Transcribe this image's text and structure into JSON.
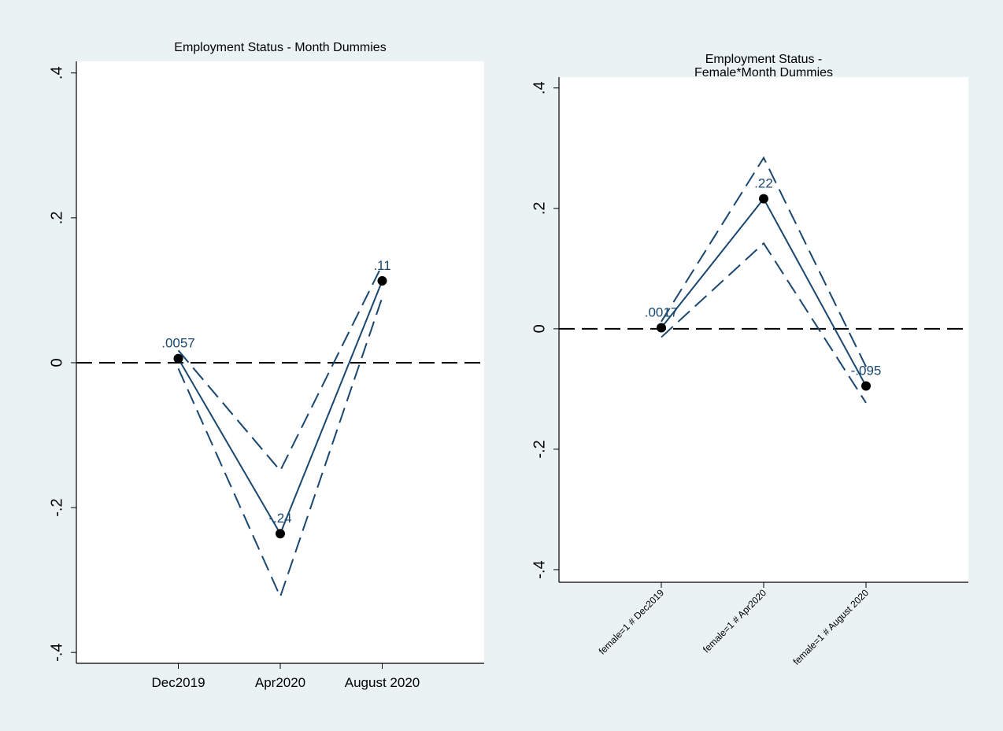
{
  "chart_data": [
    {
      "type": "line",
      "title": [
        "Employment Status - Month Dummies"
      ],
      "categories": [
        "Dec2019",
        "Apr2020",
        "August 2020"
      ],
      "values": [
        0.0057,
        -0.236,
        0.113
      ],
      "value_labels": [
        ".0057",
        "-.24",
        ".11"
      ],
      "ci_upper": [
        0.017,
        -0.149,
        0.135
      ],
      "ci_lower": [
        -0.008,
        -0.323,
        0.09
      ],
      "color": "#1a476f",
      "yline": 0,
      "ylim": [
        -0.415,
        0.416
      ],
      "yticks": [
        {
          "value": -0.4,
          "label": "-.4"
        },
        {
          "value": -0.2,
          "label": "-.2"
        },
        0,
        {
          "value": 0.2,
          "label": ".2"
        },
        {
          "value": 0.4,
          "label": ".4"
        }
      ]
    },
    {
      "type": "line",
      "title": [
        "Employment Status -",
        "Female*Month Dummies"
      ],
      "categories": [
        "female=1 # Dec2019",
        "female=1 # Apr2020",
        "female=1 # August 2020"
      ],
      "values": [
        0.0017,
        0.216,
        -0.095
      ],
      "value_labels": [
        ".0017",
        ".22",
        "-.095"
      ],
      "ci_upper": [
        0.012,
        0.284,
        -0.063
      ],
      "ci_lower": [
        -0.014,
        0.142,
        -0.123
      ],
      "color": "#1a476f",
      "yline": 0,
      "ylim": [
        -0.421,
        0.418
      ],
      "yticks": [
        {
          "value": -0.4,
          "label": "-.4"
        },
        {
          "value": -0.2,
          "label": "-.2"
        },
        0,
        {
          "value": 0.2,
          "label": ".2"
        },
        {
          "value": 0.4,
          "label": ".4"
        }
      ]
    }
  ]
}
